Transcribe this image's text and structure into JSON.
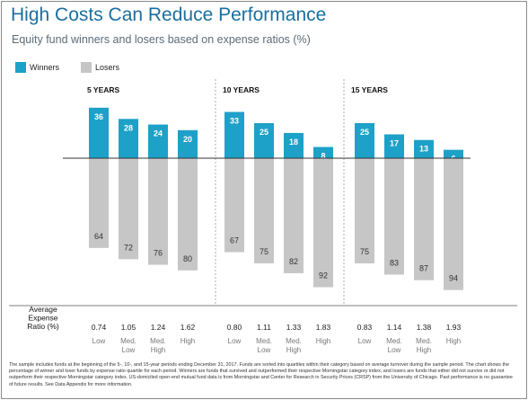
{
  "title": "High Costs Can Reduce Performance",
  "subtitle": "Equity fund winners and losers based on expense ratios (%)",
  "legend": {
    "winners": "Winners",
    "losers": "Losers"
  },
  "colors": {
    "winners": "#1da1c8",
    "losers": "#c6c6c6",
    "title": "#1a6fa0"
  },
  "row_label": [
    "Average",
    "Expense",
    "Ratio (%)"
  ],
  "footnote": "The sample includes funds at the beginning of the 5-, 10-, and 15-year periods ending December 31, 2017. Funds are sorted into quartiles within their category based on average turnover during the sample period. The chart shows the percentage of winner and loser funds by expense ratio quartile for each period. Winners are funds that survived and outperformed their respective Morningstar category index, and losers are funds that either did not survive or did not outperform their respective Morningstar category index. US-domiciled open-end mutual fund data is from Morningstar and Center for Research in Security Prices (CRSP) from the University of Chicago. Past performance is no guarantee of future results. See Data Appendix for more information.",
  "chart_data": {
    "type": "bar",
    "series": [
      {
        "name": "Winners",
        "color": "#1da1c8"
      },
      {
        "name": "Losers",
        "color": "#c6c6c6"
      }
    ],
    "panels": [
      {
        "label": "5 YEARS",
        "categories": [
          [
            "Low"
          ],
          [
            "Med.",
            "Low"
          ],
          [
            "Med.",
            "High"
          ],
          [
            "High"
          ]
        ],
        "winners": [
          36,
          28,
          24,
          20
        ],
        "losers": [
          64,
          72,
          76,
          80
        ],
        "expense_ratios": [
          "0.74",
          "1.05",
          "1.24",
          "1.62"
        ]
      },
      {
        "label": "10 YEARS",
        "categories": [
          [
            "Low"
          ],
          [
            "Med.",
            "Low"
          ],
          [
            "Med.",
            "High"
          ],
          [
            "High"
          ]
        ],
        "winners": [
          33,
          25,
          18,
          8
        ],
        "losers": [
          67,
          75,
          82,
          92
        ],
        "expense_ratios": [
          "0.80",
          "1.11",
          "1.33",
          "1.83"
        ]
      },
      {
        "label": "15 YEARS",
        "categories": [
          [
            "Low"
          ],
          [
            "Med.",
            "Low"
          ],
          [
            "Med.",
            "High"
          ],
          [
            "High"
          ]
        ],
        "winners": [
          25,
          17,
          13,
          6
        ],
        "losers": [
          75,
          83,
          87,
          94
        ],
        "expense_ratios": [
          "0.83",
          "1.14",
          "1.38",
          "1.93"
        ]
      }
    ],
    "ylim": [
      -100,
      40
    ],
    "grid": false,
    "legend_position": "top-left"
  }
}
